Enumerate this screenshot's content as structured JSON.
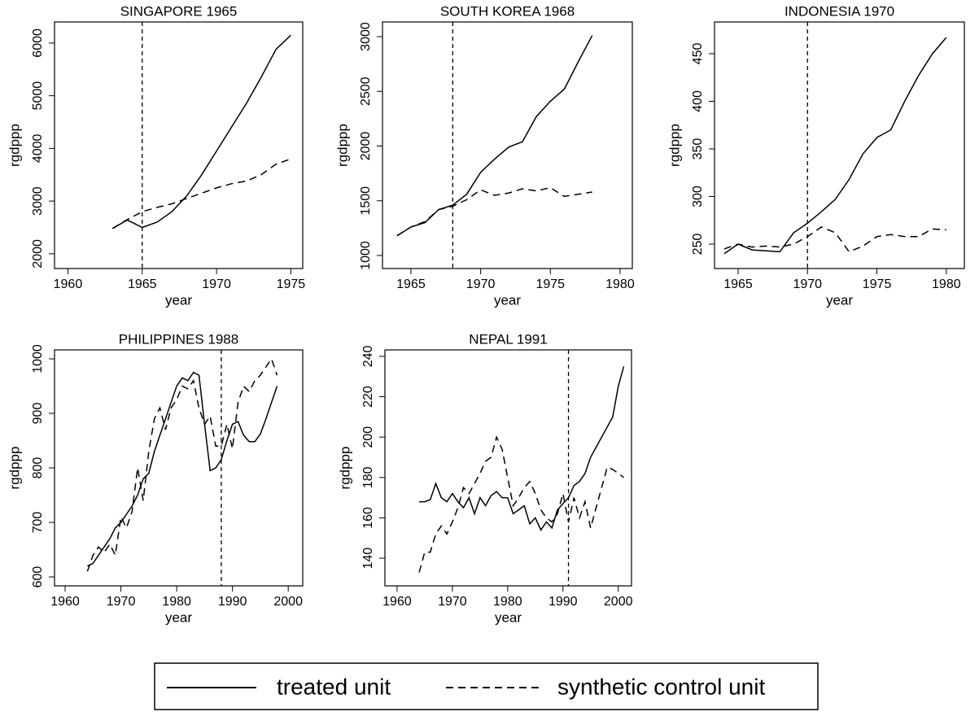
{
  "chart_data": [
    {
      "type": "line",
      "title": "SINGAPORE 1965",
      "x_label": "year",
      "y_label": "rgdppp",
      "vline": 1965,
      "x": [
        1963,
        1964,
        1965,
        1966,
        1967,
        1968,
        1969,
        1970,
        1971,
        1972,
        1973,
        1974,
        1975
      ],
      "series": [
        {
          "name": "treated unit",
          "color": "#000",
          "line_style": "solid",
          "values": [
            2480,
            2640,
            2500,
            2600,
            2800,
            3100,
            3500,
            3950,
            4400,
            4850,
            5350,
            5880,
            6150
          ]
        },
        {
          "name": "synthetic control unit",
          "color": "#000",
          "line_style": "dashed",
          "values": [
            2480,
            2650,
            2800,
            2880,
            2950,
            3050,
            3150,
            3250,
            3330,
            3380,
            3500,
            3700,
            3800
          ]
        }
      ],
      "xlim": [
        1959.1,
        1975.8
      ],
      "ylim": [
        1720,
        6400
      ],
      "xticks": [
        1960,
        1965,
        1970,
        1975
      ],
      "yticks": [
        2000,
        3000,
        4000,
        5000,
        6000
      ]
    },
    {
      "type": "line",
      "title": "SOUTH KOREA 1968",
      "x_label": "year",
      "y_label": "rgdppp",
      "vline": 1968,
      "x": [
        1964,
        1965,
        1966,
        1967,
        1968,
        1969,
        1970,
        1971,
        1972,
        1973,
        1974,
        1975,
        1976,
        1977,
        1978
      ],
      "series": [
        {
          "name": "treated unit",
          "color": "#000",
          "line_style": "solid",
          "values": [
            1180,
            1260,
            1300,
            1420,
            1460,
            1560,
            1760,
            1880,
            1990,
            2040,
            2270,
            2410,
            2520,
            2770,
            3010
          ]
        },
        {
          "name": "synthetic control unit",
          "color": "#000",
          "line_style": "dashed",
          "values": [
            1180,
            1260,
            1310,
            1420,
            1450,
            1510,
            1600,
            1550,
            1570,
            1610,
            1590,
            1620,
            1540,
            1560,
            1580
          ]
        }
      ],
      "xlim": [
        1962.96,
        1980.88
      ],
      "ylim": [
        881,
        3134
      ],
      "xticks": [
        1965,
        1970,
        1975,
        1980
      ],
      "yticks": [
        1000,
        1500,
        2000,
        2500,
        3000
      ]
    },
    {
      "type": "line",
      "title": "INDONESIA 1970",
      "x_label": "year",
      "y_label": "rgdppp",
      "vline": 1970,
      "x": [
        1964,
        1965,
        1966,
        1967,
        1968,
        1969,
        1970,
        1971,
        1972,
        1973,
        1974,
        1975,
        1976,
        1977,
        1978,
        1979,
        1980
      ],
      "series": [
        {
          "name": "treated unit",
          "color": "#000",
          "line_style": "solid",
          "values": [
            240,
            250,
            244,
            243,
            242,
            262,
            272,
            284,
            297,
            318,
            345,
            362,
            370,
            400,
            427,
            450,
            467
          ]
        },
        {
          "name": "synthetic control unit",
          "color": "#000",
          "line_style": "dashed",
          "values": [
            245,
            250,
            247,
            248,
            247,
            250,
            258,
            268,
            262,
            242,
            248,
            258,
            260,
            258,
            258,
            266,
            265
          ]
        }
      ],
      "xlim": [
        1963.3,
        1981.3
      ],
      "ylim": [
        224.4,
        483.3
      ],
      "xticks": [
        1965,
        1970,
        1975,
        1980
      ],
      "yticks": [
        250,
        300,
        350,
        400,
        450
      ]
    },
    {
      "type": "line",
      "title": "PHILIPPINES 1988",
      "x_label": "year",
      "y_label": "rgdppp",
      "vline": 1988,
      "x": [
        1964,
        1965,
        1966,
        1967,
        1968,
        1969,
        1970,
        1971,
        1972,
        1973,
        1974,
        1975,
        1976,
        1977,
        1978,
        1979,
        1980,
        1981,
        1982,
        1983,
        1984,
        1985,
        1986,
        1987,
        1988,
        1989,
        1990,
        1991,
        1992,
        1993,
        1994,
        1995,
        1996,
        1997,
        1998
      ],
      "series": [
        {
          "name": "treated unit",
          "color": "#000",
          "line_style": "solid",
          "values": [
            620,
            625,
            640,
            655,
            670,
            690,
            700,
            715,
            730,
            750,
            780,
            790,
            830,
            860,
            890,
            920,
            950,
            965,
            960,
            975,
            970,
            880,
            795,
            800,
            815,
            850,
            880,
            885,
            860,
            848,
            848,
            862,
            890,
            920,
            950
          ]
        },
        {
          "name": "synthetic control unit",
          "color": "#000",
          "line_style": "dashed",
          "values": [
            610,
            640,
            655,
            645,
            660,
            640,
            710,
            690,
            720,
            800,
            740,
            830,
            890,
            910,
            870,
            910,
            925,
            950,
            945,
            960,
            910,
            880,
            895,
            840,
            840,
            880,
            835,
            920,
            950,
            940,
            960,
            970,
            985,
            1000,
            970
          ]
        }
      ],
      "xlim": [
        1958.1,
        2002.6
      ],
      "ylim": [
        583.6,
        1016.4
      ],
      "xticks": [
        1960,
        1970,
        1980,
        1990,
        2000
      ],
      "yticks": [
        600,
        700,
        800,
        900,
        1000
      ]
    },
    {
      "type": "line",
      "title": "NEPAL 1991",
      "x_label": "year",
      "y_label": "rgdppp",
      "vline": 1991,
      "x": [
        1964,
        1965,
        1966,
        1967,
        1968,
        1969,
        1970,
        1971,
        1972,
        1973,
        1974,
        1975,
        1976,
        1977,
        1978,
        1979,
        1980,
        1981,
        1982,
        1983,
        1984,
        1985,
        1986,
        1987,
        1988,
        1989,
        1990,
        1991,
        1992,
        1993,
        1994,
        1995,
        1996,
        1997,
        1998,
        1999,
        2000,
        2001
      ],
      "series": [
        {
          "name": "treated unit",
          "color": "#000",
          "line_style": "solid",
          "values": [
            168,
            168,
            169,
            177,
            170,
            168,
            172,
            168,
            165,
            170,
            162,
            170,
            166,
            171,
            173,
            170,
            170,
            162,
            164,
            166,
            157,
            160,
            154,
            158,
            155,
            164,
            167,
            170,
            176,
            178,
            182,
            190,
            195,
            200,
            205,
            210,
            225,
            235
          ]
        },
        {
          "name": "synthetic control unit",
          "color": "#000",
          "line_style": "dashed",
          "values": [
            133,
            143,
            143,
            152,
            156,
            152,
            158,
            165,
            175,
            172,
            177,
            182,
            188,
            190,
            200,
            194,
            180,
            166,
            170,
            175,
            178,
            172,
            164,
            160,
            158,
            162,
            172,
            158,
            170,
            160,
            168,
            155,
            165,
            175,
            185,
            184,
            182,
            180
          ]
        }
      ],
      "xlim": [
        1957.8,
        2002.4
      ],
      "ylim": [
        126.3,
        243.2
      ],
      "xticks": [
        1960,
        1970,
        1980,
        1990,
        2000
      ],
      "yticks": [
        140,
        160,
        180,
        200,
        220,
        240
      ]
    }
  ]
}
